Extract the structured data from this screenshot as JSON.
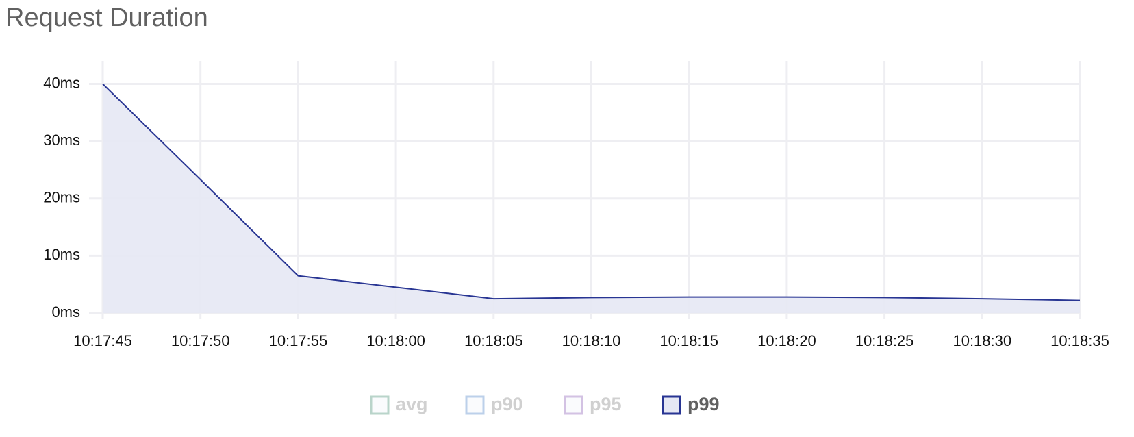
{
  "chart_data": {
    "type": "area",
    "title": "Request Duration",
    "x": [
      "10:17:45",
      "10:17:50",
      "10:17:55",
      "10:18:00",
      "10:18:05",
      "10:18:10",
      "10:18:15",
      "10:18:20",
      "10:18:25",
      "10:18:30",
      "10:18:35"
    ],
    "series": [
      {
        "name": "p99",
        "color": "#283593",
        "fill": "#e6e8f4",
        "values": [
          40,
          23.3,
          6.5,
          4.5,
          2.5,
          2.7,
          2.8,
          2.8,
          2.7,
          2.5,
          2.2
        ]
      }
    ],
    "legend_items": [
      {
        "name": "avg",
        "color": "#b9d4ca",
        "hidden": true
      },
      {
        "name": "p90",
        "color": "#bcd0ea",
        "hidden": true
      },
      {
        "name": "p95",
        "color": "#d3c2e3",
        "hidden": true
      },
      {
        "name": "p99",
        "color": "#283593",
        "hidden": false
      }
    ],
    "ylim": [
      0,
      44
    ],
    "yticks": [
      {
        "value": 0,
        "label": "0ms"
      },
      {
        "value": 10,
        "label": "10ms"
      },
      {
        "value": 20,
        "label": "20ms"
      },
      {
        "value": 30,
        "label": "30ms"
      },
      {
        "value": 40,
        "label": "40ms"
      }
    ],
    "grid": true
  }
}
